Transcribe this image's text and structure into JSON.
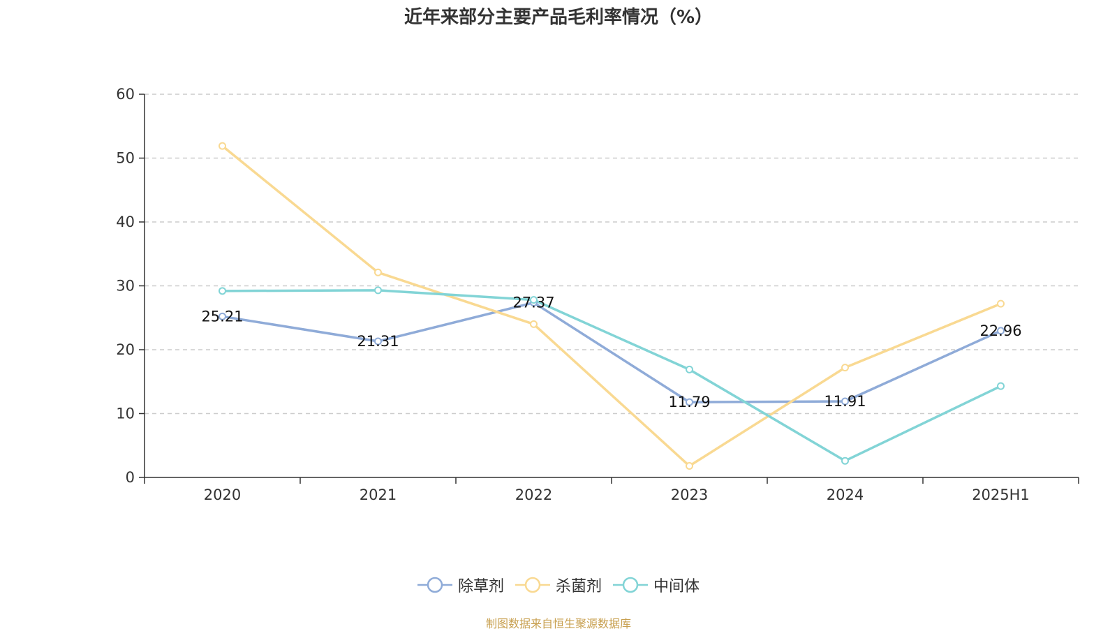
{
  "chart_data": {
    "type": "line",
    "title": "近年来部分主要产品毛利率情况（%）",
    "categories": [
      "2020",
      "2021",
      "2022",
      "2023",
      "2024",
      "2025H1"
    ],
    "ylim": [
      0,
      60
    ],
    "yticks": [
      0,
      10,
      20,
      30,
      40,
      50,
      60
    ],
    "grid": true,
    "legend_position": "bottom",
    "series": [
      {
        "name": "除草剂",
        "color": "#8fabd8",
        "values": [
          25.21,
          21.31,
          27.37,
          11.79,
          11.91,
          22.96
        ],
        "labels": [
          "25.21",
          "21.31",
          "27.37",
          "11.79",
          "11.91",
          "22.96"
        ]
      },
      {
        "name": "杀菌剂",
        "color": "#f9d992",
        "values": [
          51.9,
          32.1,
          24.0,
          1.8,
          17.2,
          27.2
        ]
      },
      {
        "name": "中间体",
        "color": "#82d4d6",
        "values": [
          29.2,
          29.3,
          27.8,
          16.9,
          2.6,
          14.3
        ]
      }
    ]
  },
  "source_note": "制图数据来自恒生聚源数据库"
}
